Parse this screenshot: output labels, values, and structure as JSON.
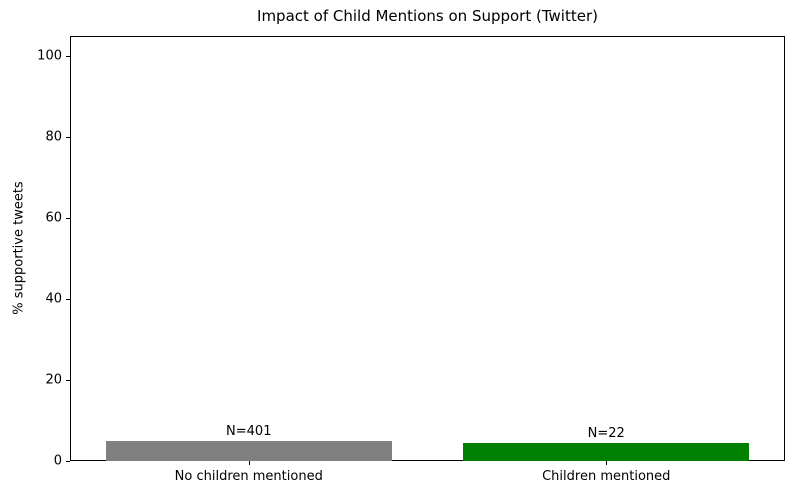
{
  "chart_data": {
    "type": "bar",
    "title": "Impact of Child Mentions on Support (Twitter)",
    "categories": [
      "No children mentioned",
      "Children mentioned"
    ],
    "values": [
      5.0,
      4.5
    ],
    "bar_labels": [
      "N=401",
      "N=22"
    ],
    "bar_colors": [
      "#808080",
      "#008000"
    ],
    "xlabel": "",
    "ylabel": "% supportive tweets",
    "ylim": [
      0,
      105
    ],
    "yticks": [
      0,
      20,
      40,
      60,
      80,
      100
    ],
    "grid": false,
    "legend": null,
    "background": "#ffffff",
    "text_color": "#000000"
  }
}
